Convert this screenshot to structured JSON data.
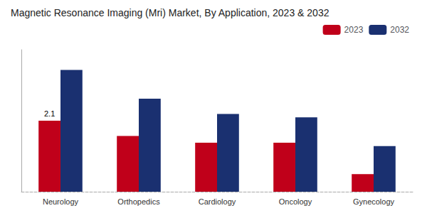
{
  "chart_data": {
    "type": "bar",
    "title": "Magnetic Resonance Imaging (Mri) Market, By Application, 2023 & 2032",
    "categories": [
      "Neurology",
      "Orthopedics",
      "Cardiology",
      "Oncology",
      "Gynecology"
    ],
    "series": [
      {
        "name": "2023",
        "color": "#c0001a",
        "values": [
          2.1,
          1.65,
          1.45,
          1.45,
          0.52
        ]
      },
      {
        "name": "2032",
        "color": "#1a3070",
        "values": [
          3.6,
          2.75,
          2.3,
          2.2,
          1.35
        ]
      }
    ],
    "ylim": [
      0,
      4.2
    ],
    "tick_labels": "x",
    "grid": false,
    "legend": "upper right",
    "annotations": [
      {
        "text": "2.1",
        "category": "Neurology",
        "series": "2023"
      }
    ]
  }
}
